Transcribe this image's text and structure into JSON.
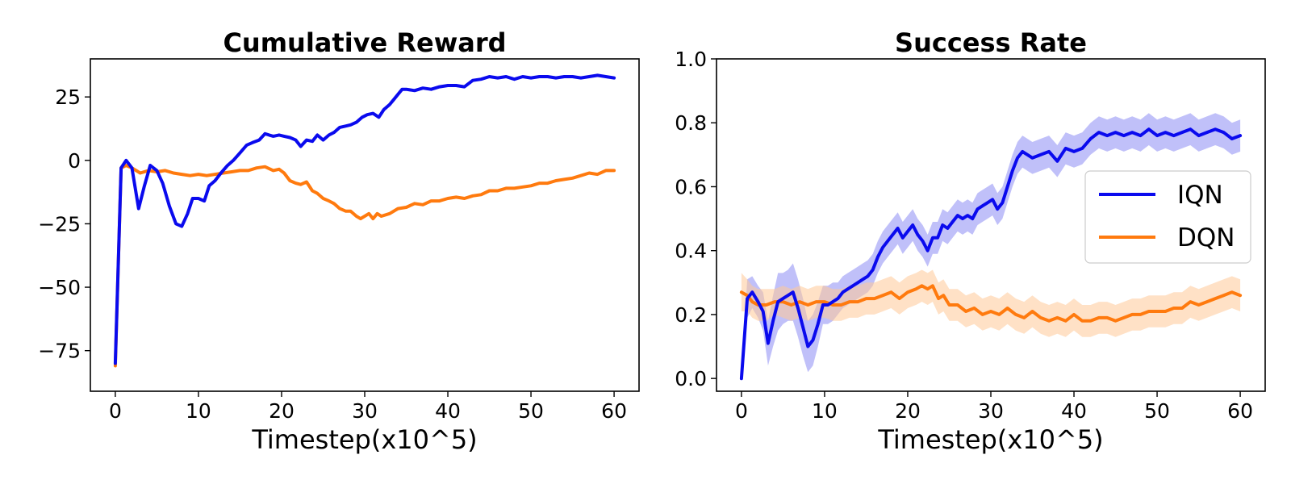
{
  "chart_data": [
    {
      "type": "line",
      "title": "Cumulative Reward",
      "xlabel": "Timestep(x10^5)",
      "ylabel": "",
      "xlim": [
        -3,
        63
      ],
      "ylim": [
        -91,
        40
      ],
      "xticks": [
        0,
        10,
        20,
        30,
        40,
        50,
        60
      ],
      "xtick_labels": [
        "0",
        "10",
        "20",
        "30",
        "40",
        "50",
        "60"
      ],
      "yticks": [
        25,
        0,
        -25,
        -50,
        -75
      ],
      "ytick_labels": [
        "25",
        "0",
        "−25",
        "−50",
        "−75"
      ],
      "series": [
        {
          "name": "IQN",
          "color": "#0a0aee",
          "x": [
            0,
            0.7,
            1.3,
            2,
            2.8,
            3.5,
            4.2,
            5,
            5.7,
            6.5,
            7.3,
            8,
            8.7,
            9.3,
            10,
            10.7,
            11.3,
            12,
            12.7,
            13.5,
            14.2,
            15,
            15.8,
            16.5,
            17.3,
            18,
            18.5,
            19,
            19.7,
            20.3,
            21,
            21.7,
            22.3,
            23,
            23.7,
            24.3,
            25,
            25.7,
            26.3,
            27,
            27.7,
            28.3,
            29,
            29.7,
            30.3,
            31,
            31.7,
            32.3,
            33,
            33.5,
            34,
            34.5,
            35,
            36,
            37,
            38,
            39,
            40,
            41,
            42,
            43,
            44,
            45,
            46,
            47,
            48,
            49,
            50,
            51,
            52,
            53,
            54,
            55,
            56,
            57,
            58,
            59,
            60
          ],
          "values": [
            -80,
            -3,
            0,
            -3,
            -19,
            -10,
            -2,
            -4,
            -9,
            -18,
            -25,
            -26,
            -21,
            -15,
            -15,
            -16,
            -10,
            -8,
            -5,
            -2,
            0,
            3,
            6,
            7,
            8,
            10.5,
            10,
            9.5,
            10,
            9.5,
            9,
            8,
            5.5,
            8,
            7.5,
            10,
            8,
            10,
            11,
            13,
            13.5,
            14,
            15,
            17,
            18,
            18.5,
            17,
            20,
            22,
            24,
            26,
            28,
            28,
            27.5,
            28.5,
            28,
            29,
            29.5,
            29.5,
            29,
            31.5,
            32,
            33,
            32.5,
            33,
            32,
            33,
            32.5,
            33,
            33,
            32.5,
            33,
            33,
            32.5,
            33,
            33.5,
            33,
            32.5
          ]
        },
        {
          "name": "DQN",
          "color": "#ff7a0e",
          "x": [
            0,
            0.7,
            1.3,
            2,
            3,
            4,
            5,
            6,
            7,
            8,
            9,
            10,
            11,
            12,
            13,
            14,
            15,
            16,
            17,
            18,
            19,
            19.7,
            20.3,
            21,
            21.7,
            22.3,
            23,
            23.7,
            24.3,
            25,
            25.7,
            26.3,
            27,
            27.7,
            28.3,
            29,
            29.5,
            30,
            30.5,
            31,
            31.5,
            32,
            33,
            34,
            35,
            36,
            37,
            38,
            39,
            40,
            41,
            42,
            43,
            44,
            45,
            46,
            47,
            48,
            49,
            50,
            51,
            52,
            53,
            54,
            55,
            56,
            57,
            58,
            59,
            60
          ],
          "values": [
            -81,
            -3,
            -2,
            -3,
            -5,
            -4,
            -4.5,
            -4,
            -5,
            -5.5,
            -6,
            -5.5,
            -6,
            -5.5,
            -5,
            -4.5,
            -4,
            -4,
            -3,
            -2.5,
            -4,
            -3.5,
            -5,
            -8,
            -9,
            -9.5,
            -8.5,
            -12,
            -13,
            -15,
            -16,
            -17,
            -19,
            -20,
            -20,
            -22,
            -23,
            -22,
            -21,
            -23,
            -21,
            -22,
            -21,
            -19,
            -18.5,
            -17,
            -17.5,
            -16,
            -16,
            -15,
            -14.5,
            -15,
            -14,
            -13.5,
            -12,
            -12,
            -11,
            -11,
            -10.5,
            -10,
            -9,
            -9,
            -8,
            -7.5,
            -7,
            -6,
            -5,
            -5.5,
            -4,
            -4
          ]
        }
      ]
    },
    {
      "type": "line",
      "title": "Success Rate",
      "xlabel": "Timestep(x10^5)",
      "ylabel": "",
      "xlim": [
        -3,
        63
      ],
      "ylim": [
        -0.04,
        1.0
      ],
      "xticks": [
        0,
        10,
        20,
        30,
        40,
        50,
        60
      ],
      "xtick_labels": [
        "0",
        "10",
        "20",
        "30",
        "40",
        "50",
        "60"
      ],
      "yticks": [
        0.0,
        0.2,
        0.4,
        0.6,
        0.8,
        1.0
      ],
      "ytick_labels": [
        "0.0",
        "0.2",
        "0.4",
        "0.6",
        "0.8",
        "1.0"
      ],
      "legend": {
        "position": "center-right",
        "entries": [
          "IQN",
          "DQN"
        ]
      },
      "series": [
        {
          "name": "IQN",
          "color": "#0a0aee",
          "band_color": "#8c8cf4",
          "x": [
            0,
            0.7,
            1.3,
            2,
            2.6,
            3.2,
            3.8,
            4.4,
            5,
            5.6,
            6.2,
            6.8,
            7.4,
            8,
            8.6,
            9.2,
            9.8,
            10.4,
            11,
            11.6,
            12.2,
            12.8,
            13.4,
            14,
            14.6,
            15.2,
            15.8,
            16.4,
            17,
            17.6,
            18.2,
            18.8,
            19.4,
            20,
            20.6,
            21.2,
            21.8,
            22.4,
            23,
            23.6,
            24.2,
            24.8,
            25.4,
            26,
            26.6,
            27.2,
            27.8,
            28.4,
            29,
            29.6,
            30.2,
            30.8,
            31.4,
            32,
            32.6,
            33.2,
            33.8,
            34.4,
            35,
            36,
            37,
            38,
            39,
            40,
            41,
            42,
            43,
            44,
            45,
            46,
            47,
            48,
            49,
            50,
            51,
            52,
            53,
            54,
            55,
            56,
            57,
            58,
            59,
            60
          ],
          "values": [
            0.0,
            0.25,
            0.27,
            0.24,
            0.21,
            0.11,
            0.18,
            0.24,
            0.25,
            0.26,
            0.27,
            0.22,
            0.16,
            0.1,
            0.12,
            0.17,
            0.23,
            0.23,
            0.24,
            0.25,
            0.27,
            0.28,
            0.29,
            0.3,
            0.31,
            0.32,
            0.34,
            0.38,
            0.41,
            0.43,
            0.45,
            0.47,
            0.44,
            0.46,
            0.48,
            0.45,
            0.43,
            0.4,
            0.44,
            0.44,
            0.48,
            0.47,
            0.49,
            0.51,
            0.5,
            0.51,
            0.5,
            0.53,
            0.54,
            0.55,
            0.56,
            0.53,
            0.55,
            0.6,
            0.65,
            0.69,
            0.71,
            0.7,
            0.69,
            0.7,
            0.71,
            0.68,
            0.72,
            0.71,
            0.72,
            0.75,
            0.77,
            0.76,
            0.77,
            0.76,
            0.77,
            0.76,
            0.78,
            0.76,
            0.77,
            0.76,
            0.77,
            0.78,
            0.76,
            0.77,
            0.78,
            0.77,
            0.75,
            0.76
          ],
          "band": [
            0.0,
            0.06,
            0.05,
            0.05,
            0.06,
            0.07,
            0.08,
            0.09,
            0.08,
            0.08,
            0.09,
            0.09,
            0.09,
            0.08,
            0.08,
            0.07,
            0.06,
            0.06,
            0.06,
            0.05,
            0.05,
            0.05,
            0.05,
            0.05,
            0.05,
            0.05,
            0.05,
            0.05,
            0.05,
            0.05,
            0.05,
            0.05,
            0.05,
            0.05,
            0.05,
            0.05,
            0.05,
            0.05,
            0.05,
            0.05,
            0.05,
            0.05,
            0.05,
            0.05,
            0.05,
            0.05,
            0.05,
            0.05,
            0.05,
            0.05,
            0.05,
            0.05,
            0.05,
            0.05,
            0.05,
            0.05,
            0.05,
            0.05,
            0.05,
            0.05,
            0.05,
            0.05,
            0.05,
            0.05,
            0.05,
            0.05,
            0.05,
            0.05,
            0.05,
            0.05,
            0.05,
            0.05,
            0.05,
            0.05,
            0.05,
            0.05,
            0.05,
            0.05,
            0.05,
            0.05,
            0.05,
            0.05,
            0.05,
            0.05
          ]
        },
        {
          "name": "DQN",
          "color": "#ff7a0e",
          "band_color": "#ffc898",
          "x": [
            0,
            0.7,
            1.3,
            2,
            3,
            4,
            5,
            6,
            7,
            8,
            9,
            10,
            11,
            12,
            13,
            14,
            15,
            16,
            17,
            18,
            19,
            20,
            21,
            21.7,
            22.4,
            23,
            23.7,
            24.3,
            25,
            26,
            27,
            28,
            29,
            30,
            31,
            32,
            33,
            34,
            35,
            36,
            37,
            38,
            39,
            40,
            41,
            42,
            43,
            44,
            45,
            46,
            47,
            48,
            49,
            50,
            51,
            52,
            53,
            54,
            55,
            56,
            57,
            58,
            59,
            60
          ],
          "values": [
            0.27,
            0.26,
            0.24,
            0.23,
            0.23,
            0.24,
            0.24,
            0.23,
            0.24,
            0.23,
            0.24,
            0.24,
            0.23,
            0.23,
            0.24,
            0.24,
            0.25,
            0.25,
            0.26,
            0.27,
            0.25,
            0.27,
            0.28,
            0.29,
            0.28,
            0.29,
            0.25,
            0.26,
            0.23,
            0.23,
            0.21,
            0.22,
            0.2,
            0.21,
            0.2,
            0.22,
            0.2,
            0.19,
            0.21,
            0.19,
            0.18,
            0.19,
            0.18,
            0.2,
            0.18,
            0.18,
            0.19,
            0.19,
            0.18,
            0.19,
            0.2,
            0.2,
            0.21,
            0.21,
            0.21,
            0.22,
            0.22,
            0.24,
            0.23,
            0.24,
            0.25,
            0.26,
            0.27,
            0.26
          ],
          "band": [
            0.06,
            0.05,
            0.05,
            0.05,
            0.05,
            0.04,
            0.05,
            0.05,
            0.05,
            0.05,
            0.05,
            0.05,
            0.05,
            0.05,
            0.05,
            0.05,
            0.05,
            0.05,
            0.05,
            0.05,
            0.05,
            0.05,
            0.05,
            0.05,
            0.05,
            0.05,
            0.05,
            0.05,
            0.05,
            0.05,
            0.05,
            0.05,
            0.05,
            0.05,
            0.05,
            0.05,
            0.05,
            0.05,
            0.05,
            0.05,
            0.05,
            0.05,
            0.05,
            0.05,
            0.05,
            0.05,
            0.05,
            0.05,
            0.05,
            0.05,
            0.05,
            0.05,
            0.05,
            0.05,
            0.05,
            0.05,
            0.05,
            0.05,
            0.05,
            0.05,
            0.05,
            0.05,
            0.05,
            0.05
          ]
        }
      ]
    }
  ]
}
